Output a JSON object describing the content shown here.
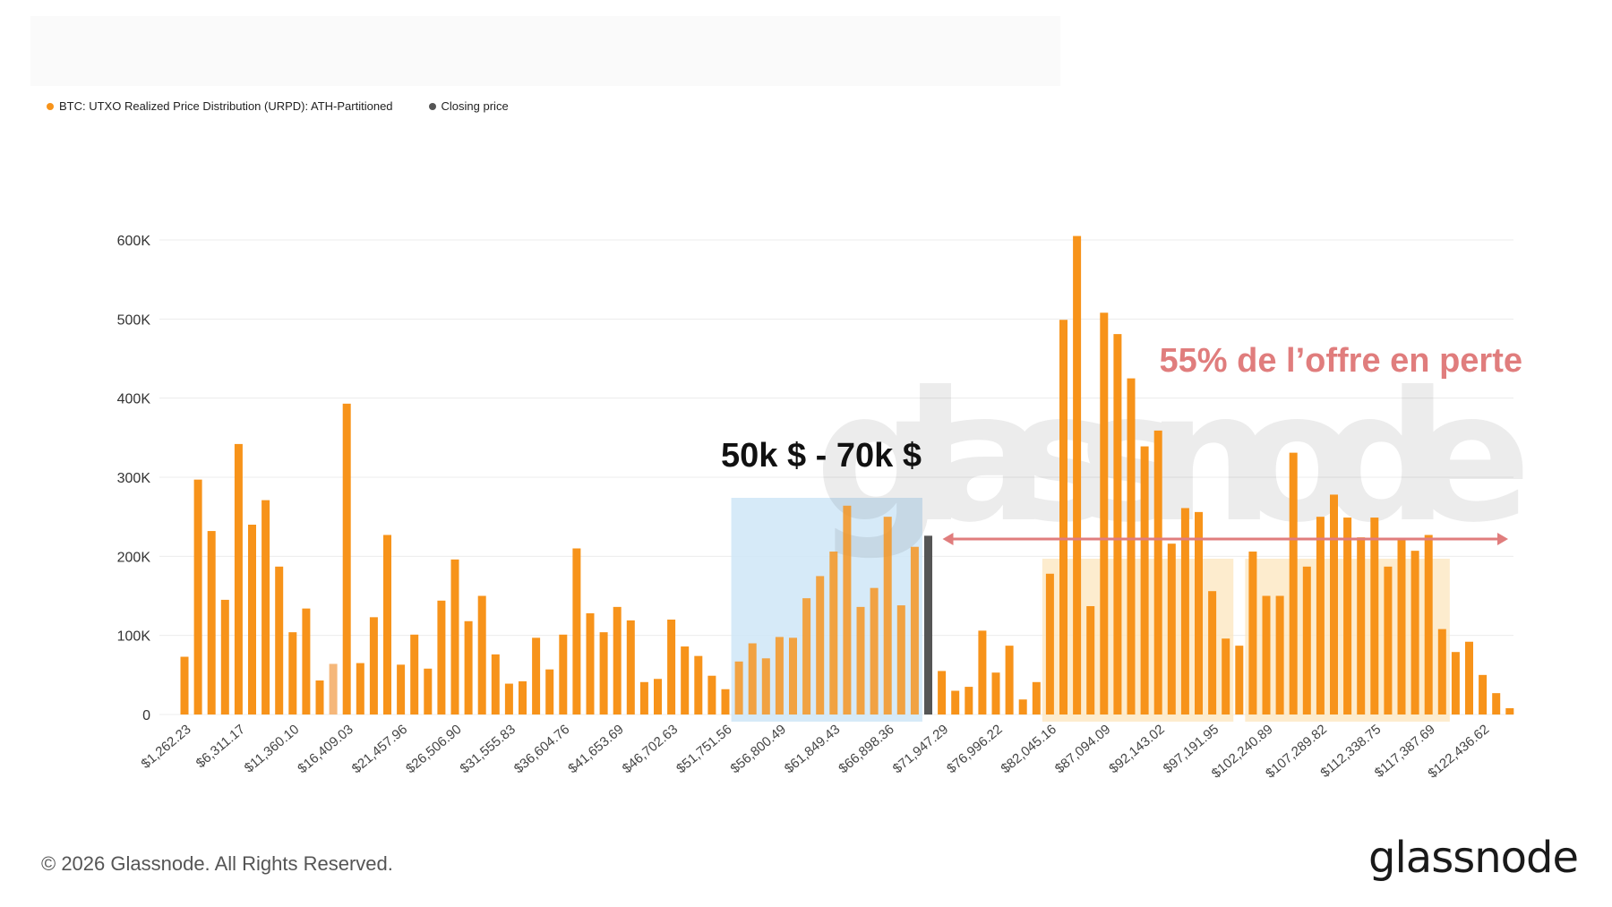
{
  "legend": {
    "series_label": "BTC: UTXO Realized Price Distribution (URPD): ATH-Partitioned",
    "closing_label": "Closing price"
  },
  "colors": {
    "bar": "#f7931a",
    "bar_faded": "#f5b77a",
    "closing": "#555555",
    "highlight_blue": "#cfe6f7",
    "highlight_orange": "#fde7c2",
    "arrow": "#e07d7d",
    "grid": "#ececec"
  },
  "annotations": {
    "range_label": "50k $ - 70k $",
    "loss_label": "55% de l’offre en perte"
  },
  "watermark": "glassnode",
  "footer": {
    "copyright": "© 2026 Glassnode. All Rights Reserved.",
    "brand": "glassnode"
  },
  "chart_data": {
    "type": "bar",
    "title": "",
    "xlabel": "",
    "ylabel": "",
    "ylim": [
      0,
      600000
    ],
    "yticks": [
      {
        "value": 0,
        "label": "0"
      },
      {
        "value": 100000,
        "label": "100K"
      },
      {
        "value": 200000,
        "label": "200K"
      },
      {
        "value": 300000,
        "label": "300K"
      },
      {
        "value": 400000,
        "label": "400K"
      },
      {
        "value": 500000,
        "label": "500K"
      },
      {
        "value": 600000,
        "label": "600K"
      }
    ],
    "xtick_labels": [
      {
        "index": 0,
        "label": "$1,262.23"
      },
      {
        "index": 4,
        "label": "$6,311.17"
      },
      {
        "index": 8,
        "label": "$11,360.10"
      },
      {
        "index": 12,
        "label": "$16,409.03"
      },
      {
        "index": 16,
        "label": "$21,457.96"
      },
      {
        "index": 20,
        "label": "$26,506.90"
      },
      {
        "index": 24,
        "label": "$31,555.83"
      },
      {
        "index": 28,
        "label": "$36,604.76"
      },
      {
        "index": 32,
        "label": "$41,653.69"
      },
      {
        "index": 36,
        "label": "$46,702.63"
      },
      {
        "index": 40,
        "label": "$51,751.56"
      },
      {
        "index": 44,
        "label": "$56,800.49"
      },
      {
        "index": 48,
        "label": "$61,849.43"
      },
      {
        "index": 52,
        "label": "$66,898.36"
      },
      {
        "index": 56,
        "label": "$71,947.29"
      },
      {
        "index": 60,
        "label": "$76,996.22"
      },
      {
        "index": 64,
        "label": "$82,045.16"
      },
      {
        "index": 68,
        "label": "$87,094.09"
      },
      {
        "index": 72,
        "label": "$92,143.02"
      },
      {
        "index": 76,
        "label": "$97,191.95"
      },
      {
        "index": 80,
        "label": "$102,240.89"
      },
      {
        "index": 84,
        "label": "$107,289.82"
      },
      {
        "index": 88,
        "label": "$112,338.75"
      },
      {
        "index": 92,
        "label": "$117,387.69"
      },
      {
        "index": 96,
        "label": "$122,436.62"
      }
    ],
    "values": [
      73000,
      297000,
      232000,
      145000,
      342000,
      240000,
      271000,
      187000,
      104000,
      134000,
      43000,
      64000,
      393000,
      65000,
      123000,
      227000,
      63000,
      101000,
      58000,
      144000,
      196000,
      118000,
      150000,
      76000,
      39000,
      42000,
      97000,
      57000,
      101000,
      210000,
      128000,
      104000,
      136000,
      119000,
      41000,
      45000,
      120000,
      86000,
      74000,
      49000,
      32000,
      67000,
      90000,
      71000,
      98000,
      97000,
      147000,
      175000,
      206000,
      264000,
      136000,
      160000,
      250000,
      138000,
      212000,
      226000,
      55000,
      30000,
      35000,
      106000,
      53000,
      87000,
      19000,
      41000,
      178000,
      499000,
      605000,
      137000,
      508000,
      481000,
      425000,
      339000,
      359000,
      216000,
      261000,
      256000,
      156000,
      96000,
      87000,
      206000,
      150000,
      150000,
      331000,
      187000,
      250000,
      278000,
      249000,
      224000,
      249000,
      187000,
      223000,
      207000,
      227000,
      108000,
      79000,
      92000,
      50000,
      27000,
      8000
    ],
    "faded_indices": [
      11
    ],
    "closing_price_index": 55,
    "highlight_ranges": [
      {
        "name": "50k-70k range",
        "from_index": 41,
        "to_index": 54,
        "color": "blue"
      },
      {
        "name": "loss zone A",
        "from_index": 64,
        "to_index": 77,
        "color": "orange"
      },
      {
        "name": "loss zone B",
        "from_index": 79,
        "to_index": 93,
        "color": "orange"
      }
    ]
  }
}
